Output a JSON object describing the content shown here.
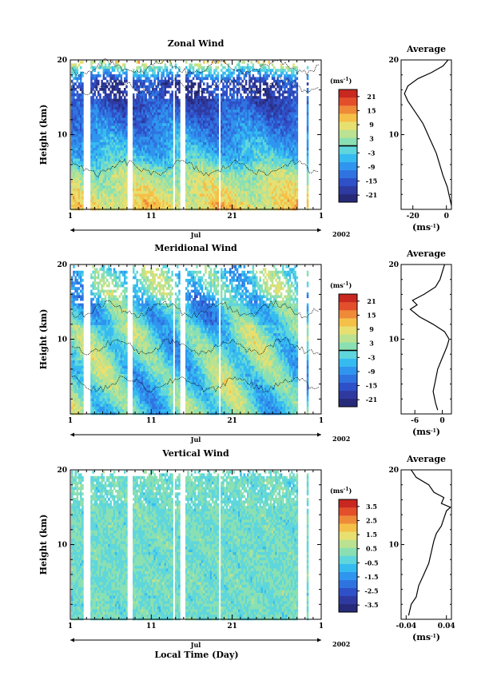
{
  "figure": {
    "xlabel": "Local Time (Day)"
  },
  "chart_data": [
    {
      "type": "heatmap",
      "title": "Zonal Wind",
      "ylabel": "Height (km)",
      "ylim": [
        0,
        20
      ],
      "y_ticks": [
        "20",
        "10"
      ],
      "x_ticks": [
        "1",
        "11",
        "21",
        "1"
      ],
      "month_label": "Jul",
      "year_label": "2002",
      "colorbar": {
        "unit": "(ms",
        "unit_sup": "-1",
        "unit_close": ")",
        "range": [
          -24,
          24
        ],
        "ticks": [
          "21",
          "15",
          "9",
          "3",
          "-3",
          "-9",
          "-15",
          "-21"
        ],
        "zero_line": 0
      },
      "structure": "westerly (positive) winds below about 6 km, easterly (negative) winds above with a minimum near 15-17 km, westerly again near 18-19 km",
      "average_profile": {
        "title": "Average",
        "unit": "(ms",
        "unit_sup": "-1",
        "unit_close": ")",
        "xlim": [
          -27,
          3
        ],
        "x_ticks": [
          "-20",
          "0"
        ],
        "y_ticks": [
          "20",
          "10"
        ],
        "points": [
          [
            3,
            0.5
          ],
          [
            2,
            1.5
          ],
          [
            0.5,
            3
          ],
          [
            -2,
            4.5
          ],
          [
            -4,
            6
          ],
          [
            -6,
            7.5
          ],
          [
            -8,
            8.5
          ],
          [
            -10,
            9.5
          ],
          [
            -12,
            10.5
          ],
          [
            -14,
            11.5
          ],
          [
            -17,
            12.5
          ],
          [
            -20,
            13.5
          ],
          [
            -23,
            14.5
          ],
          [
            -25,
            15.5
          ],
          [
            -23,
            16.5
          ],
          [
            -17,
            17.5
          ],
          [
            -9,
            18.3
          ],
          [
            -2,
            19.2
          ],
          [
            1,
            20
          ]
        ]
      }
    },
    {
      "type": "heatmap",
      "title": "Meridional Wind",
      "ylabel": "Height (km)",
      "ylim": [
        0,
        20
      ],
      "y_ticks": [
        "20",
        "10"
      ],
      "x_ticks": [
        "1",
        "11",
        "21",
        "1"
      ],
      "month_label": "Jul",
      "year_label": "2002",
      "colorbar": {
        "unit": "(ms",
        "unit_sup": "-1",
        "unit_close": ")",
        "range": [
          -24,
          24
        ],
        "ticks": [
          "21",
          "15",
          "9",
          "3",
          "-3",
          "-9",
          "-15",
          "-21"
        ],
        "zero_line": 0
      },
      "structure": "mostly weak northerly/southerly winds between -9 and 6 m/s with alternating patches",
      "average_profile": {
        "title": "Average",
        "unit": "(ms",
        "unit_sup": "-1",
        "unit_close": ")",
        "xlim": [
          -9,
          2
        ],
        "x_ticks": [
          "-6",
          "0"
        ],
        "y_ticks": [
          "20",
          "10"
        ],
        "points": [
          [
            -1,
            0.5
          ],
          [
            -1.5,
            1.5
          ],
          [
            -2,
            3
          ],
          [
            -1.5,
            4.5
          ],
          [
            -1,
            6
          ],
          [
            0,
            7.5
          ],
          [
            1,
            9
          ],
          [
            1.5,
            10
          ],
          [
            0.5,
            11
          ],
          [
            -2,
            12
          ],
          [
            -5,
            13
          ],
          [
            -7,
            14
          ],
          [
            -5.5,
            14.6
          ],
          [
            -6.5,
            15.2
          ],
          [
            -4,
            16
          ],
          [
            -1.5,
            17
          ],
          [
            -0.5,
            18
          ],
          [
            0,
            19
          ],
          [
            0.5,
            20
          ]
        ]
      }
    },
    {
      "type": "heatmap",
      "title": "Vertical Wind",
      "ylabel": "Height (km)",
      "ylim": [
        0,
        20
      ],
      "y_ticks": [
        "20",
        "10"
      ],
      "x_ticks": [
        "1",
        "11",
        "21",
        "1"
      ],
      "month_label": "Jul",
      "year_label": "2002",
      "colorbar": {
        "unit": "(ms",
        "unit_sup": "-1",
        "unit_close": ")",
        "range": [
          -4,
          4
        ],
        "ticks": [
          "3.5",
          "2.5",
          "1.5",
          "0.5",
          "-0.5",
          "-1.5",
          "-2.5",
          "-3.5"
        ],
        "zero_line": null
      },
      "structure": "near-zero vertical velocity everywhere (mostly between -0.5 and 0.5 m/s)",
      "average_profile": {
        "title": "Average",
        "unit": "(ms",
        "unit_sup": "-1",
        "unit_close": ")",
        "xlim": [
          -0.05,
          0.05
        ],
        "x_ticks": [
          "-0.04",
          "0.04"
        ],
        "y_ticks": [
          "20",
          "10"
        ],
        "points": [
          [
            -0.035,
            0.5
          ],
          [
            -0.03,
            2
          ],
          [
            -0.02,
            3
          ],
          [
            -0.015,
            4.5
          ],
          [
            -0.005,
            6
          ],
          [
            0.005,
            7.5
          ],
          [
            0.01,
            9
          ],
          [
            0.015,
            10.5
          ],
          [
            0.02,
            11.5
          ],
          [
            0.03,
            12.5
          ],
          [
            0.035,
            13.5
          ],
          [
            0.04,
            14.5
          ],
          [
            0.048,
            15
          ],
          [
            0.03,
            15.5
          ],
          [
            0.035,
            16.3
          ],
          [
            0.015,
            17
          ],
          [
            0.005,
            18
          ],
          [
            -0.02,
            19
          ],
          [
            -0.03,
            20
          ]
        ]
      }
    }
  ],
  "colors": {
    "scale": [
      "#262a78",
      "#2e3aa0",
      "#2e50c8",
      "#2f73e0",
      "#2f95ee",
      "#35bbf0",
      "#5ed6dc",
      "#8ae0b2",
      "#bbe290",
      "#e7e070",
      "#f5c048",
      "#ef8a38",
      "#e34f2a",
      "#c82820"
    ]
  }
}
